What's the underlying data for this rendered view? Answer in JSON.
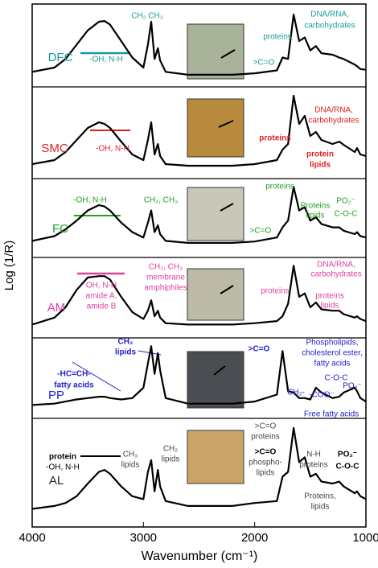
{
  "chart_data": {
    "type": "line",
    "xlabel": "Wavenumber (cm⁻¹)",
    "ylabel": "Log (1/R)",
    "xlim": [
      4000,
      1000
    ],
    "xticks": [
      4000,
      3000,
      2000,
      1000
    ],
    "ylim": [
      0,
      1
    ],
    "x": [
      4000,
      3800,
      3700,
      3600,
      3500,
      3400,
      3350,
      3300,
      3200,
      3100,
      3000,
      2960,
      2930,
      2900,
      2870,
      2850,
      2800,
      2600,
      2400,
      2200,
      2000,
      1800,
      1750,
      1700,
      1650,
      1600,
      1550,
      1500,
      1450,
      1400,
      1300,
      1240,
      1200,
      1100,
      1080,
      1050,
      1000
    ],
    "series": [
      {
        "name": "DFC",
        "color": "#1a9a9a",
        "values": [
          0.12,
          0.18,
          0.3,
          0.5,
          0.7,
          0.82,
          0.83,
          0.78,
          0.55,
          0.32,
          0.18,
          0.5,
          0.82,
          0.3,
          0.45,
          0.28,
          0.12,
          0.08,
          0.08,
          0.08,
          0.1,
          0.14,
          0.32,
          0.3,
          0.92,
          0.55,
          0.6,
          0.42,
          0.48,
          0.38,
          0.36,
          0.32,
          0.3,
          0.22,
          0.2,
          0.16,
          0.15
        ]
      },
      {
        "name": "SMC",
        "color": "#e02020",
        "values": [
          0.1,
          0.15,
          0.25,
          0.4,
          0.55,
          0.62,
          0.6,
          0.55,
          0.38,
          0.22,
          0.15,
          0.4,
          0.62,
          0.22,
          0.35,
          0.2,
          0.1,
          0.08,
          0.08,
          0.08,
          0.1,
          0.15,
          0.28,
          0.35,
          0.95,
          0.6,
          0.7,
          0.45,
          0.5,
          0.4,
          0.35,
          0.38,
          0.34,
          0.25,
          0.3,
          0.22,
          0.2
        ]
      },
      {
        "name": "FC",
        "color": "#22a022",
        "values": [
          0.15,
          0.22,
          0.32,
          0.45,
          0.6,
          0.68,
          0.66,
          0.6,
          0.42,
          0.28,
          0.2,
          0.42,
          0.6,
          0.28,
          0.38,
          0.25,
          0.15,
          0.12,
          0.12,
          0.12,
          0.14,
          0.2,
          0.35,
          0.45,
          0.95,
          0.6,
          0.65,
          0.45,
          0.5,
          0.4,
          0.35,
          0.35,
          0.3,
          0.25,
          0.28,
          0.22,
          0.2
        ]
      },
      {
        "name": "AM",
        "color": "#e040a0",
        "values": [
          0.1,
          0.2,
          0.35,
          0.6,
          0.78,
          0.8,
          0.8,
          0.75,
          0.5,
          0.28,
          0.18,
          0.3,
          0.45,
          0.22,
          0.3,
          0.2,
          0.12,
          0.1,
          0.1,
          0.1,
          0.12,
          0.15,
          0.22,
          0.4,
          0.95,
          0.5,
          0.55,
          0.35,
          0.42,
          0.32,
          0.3,
          0.3,
          0.25,
          0.2,
          0.22,
          0.18,
          0.15
        ]
      },
      {
        "name": "PP",
        "color": "#2020d0",
        "values": [
          0.1,
          0.12,
          0.15,
          0.18,
          0.2,
          0.22,
          0.22,
          0.2,
          0.18,
          0.2,
          0.35,
          0.7,
          0.95,
          0.55,
          0.85,
          0.6,
          0.2,
          0.12,
          0.12,
          0.12,
          0.15,
          0.25,
          0.88,
          0.3,
          0.28,
          0.2,
          0.2,
          0.18,
          0.35,
          0.28,
          0.2,
          0.22,
          0.28,
          0.35,
          0.3,
          0.2,
          0.15
        ]
      },
      {
        "name": "AL",
        "color": "#222222",
        "values": [
          0.12,
          0.15,
          0.18,
          0.25,
          0.38,
          0.5,
          0.52,
          0.48,
          0.35,
          0.25,
          0.22,
          0.5,
          0.62,
          0.3,
          0.52,
          0.35,
          0.2,
          0.15,
          0.15,
          0.15,
          0.18,
          0.2,
          0.45,
          0.5,
          0.95,
          0.6,
          0.65,
          0.45,
          0.48,
          0.4,
          0.38,
          0.4,
          0.35,
          0.28,
          0.3,
          0.25,
          0.22
        ]
      }
    ],
    "annotations": [
      {
        "text": "CH₂  CH₃",
        "color": "#1a9a9a"
      },
      {
        "text": "-OH, N-H",
        "color": "#1a9a9a"
      },
      {
        "text": "proteins",
        "color": "#1a9a9a"
      },
      {
        "text": "DNA/RNA,",
        "color": "#1a9a9a"
      },
      {
        "text": "carbohydrates",
        "color": "#1a9a9a"
      },
      {
        "text": ">C=O",
        "color": "#1a9a9a"
      },
      {
        "text": "-OH, N-H",
        "color": "#e02020"
      },
      {
        "text": "proteins",
        "color": "#e02020"
      },
      {
        "text": "DNA/RNA,",
        "color": "#e02020"
      },
      {
        "text": "carbohydrates",
        "color": "#e02020"
      },
      {
        "text": "protein",
        "color": "#e02020"
      },
      {
        "text": "lipids",
        "color": "#e02020"
      },
      {
        "text": "-OH, N-H",
        "color": "#22a022"
      },
      {
        "text": "CH₂, CH₃",
        "color": "#22a022"
      },
      {
        "text": "proteins",
        "color": "#22a022"
      },
      {
        "text": ">C=O",
        "color": "#22a022"
      },
      {
        "text": "Proteins",
        "color": "#22a022"
      },
      {
        "text": "lipids",
        "color": "#22a022"
      },
      {
        "text": "PO₂⁻",
        "color": "#22a022"
      },
      {
        "text": "C-O-C",
        "color": "#22a022"
      },
      {
        "text": "OH, N-H",
        "color": "#e040a0"
      },
      {
        "text": "amide A,",
        "color": "#e040a0"
      },
      {
        "text": "amide B",
        "color": "#e040a0"
      },
      {
        "text": "CH₂, CH₃",
        "color": "#e040a0"
      },
      {
        "text": "membrane",
        "color": "#e040a0"
      },
      {
        "text": "amphiphiles",
        "color": "#e040a0"
      },
      {
        "text": "proteins",
        "color": "#e040a0"
      },
      {
        "text": "DNA/RNA,",
        "color": "#e040a0"
      },
      {
        "text": "carbohydrates",
        "color": "#e040a0"
      },
      {
        "text": "proteins",
        "color": "#e040a0"
      },
      {
        "text": "lipids",
        "color": "#e040a0"
      },
      {
        "text": "CH₂",
        "color": "#2020d0"
      },
      {
        "text": "lipids",
        "color": "#2020d0"
      },
      {
        "text": "-HC=CH-",
        "color": "#2020d0"
      },
      {
        "text": "fatty acids",
        "color": "#2020d0"
      },
      {
        "text": ">C=O",
        "color": "#2020d0"
      },
      {
        "text": "Phospholipids,",
        "color": "#2020d0"
      },
      {
        "text": "cholesterol ester,",
        "color": "#2020d0"
      },
      {
        "text": "fatty acids",
        "color": "#2020d0"
      },
      {
        "text": "C-O-C",
        "color": "#2020d0"
      },
      {
        "text": "CH₂-",
        "color": "#2020d0"
      },
      {
        "text": "-COO⁻",
        "color": "#2020d0"
      },
      {
        "text": "PO₂⁻",
        "color": "#2020d0"
      },
      {
        "text": "Free fatty acids",
        "color": "#2020d0"
      },
      {
        "text": "protein",
        "color": "#000000"
      },
      {
        "text": "-OH, N-H",
        "color": "#000000"
      },
      {
        "text": "CH₃",
        "color": "#444444"
      },
      {
        "text": "lipids",
        "color": "#444444"
      },
      {
        "text": "CH₂",
        "color": "#444444"
      },
      {
        "text": "lipids",
        "color": "#444444"
      },
      {
        "text": ">C=O",
        "color": "#444444"
      },
      {
        "text": "proteins",
        "color": "#444444"
      },
      {
        "text": ">C=O",
        "color": "#000000"
      },
      {
        "text": "phospho-",
        "color": "#444444"
      },
      {
        "text": "lipids",
        "color": "#444444"
      },
      {
        "text": "N-H",
        "color": "#444444"
      },
      {
        "text": "proteins",
        "color": "#444444"
      },
      {
        "text": "Proteins,",
        "color": "#444444"
      },
      {
        "text": "lipids",
        "color": "#444444"
      },
      {
        "text": "PO₂⁻",
        "color": "#000000"
      },
      {
        "text": "C-O-C",
        "color": "#000000"
      }
    ]
  }
}
